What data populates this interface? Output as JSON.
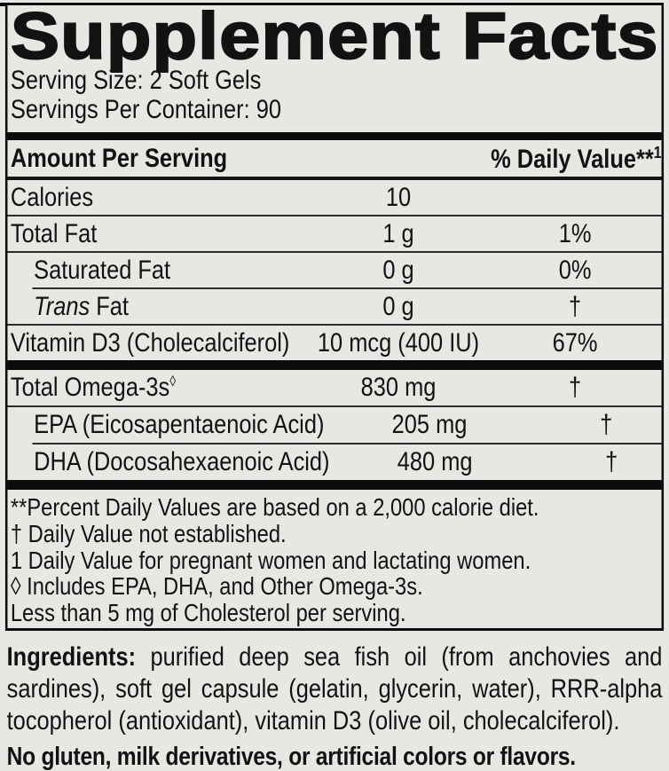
{
  "colors": {
    "background": "#e8e7e4",
    "text": "#121212",
    "thick_bar": "#0b0b0b",
    "thin_rule": "#2b2b2b"
  },
  "panel": {
    "title": "Supplement Facts",
    "serving_size": "Serving Size: 2 Soft Gels",
    "servings_per_container": "Servings Per Container: 90",
    "header": {
      "amount_label": "Amount Per Serving",
      "dv_label": "% Daily Value**",
      "dv_sup": "1"
    },
    "rows": [
      {
        "name": "Calories",
        "amount": "10",
        "dv": ""
      },
      {
        "name": "Total Fat",
        "amount": "1 g",
        "dv": "1%"
      },
      {
        "name": "Saturated Fat",
        "amount": "0 g",
        "dv": "0%"
      },
      {
        "name_italic": "Trans",
        "name": " Fat",
        "amount": "0 g",
        "dv": "†"
      },
      {
        "name": "Vitamin D3 (Cholecalciferol)",
        "amount": "10 mcg (400 IU)",
        "dv": "67%"
      }
    ],
    "omega_rows": [
      {
        "name": "Total Omega-3s",
        "name_sup": "◊",
        "amount": "830 mg",
        "dv": "†"
      },
      {
        "name": "EPA (Eicosapentaenoic Acid)",
        "amount": "205 mg",
        "dv": "†"
      },
      {
        "name": "DHA (Docosahexaenoic Acid)",
        "amount": "480 mg",
        "dv": "†"
      }
    ],
    "footnotes": [
      "**Percent Daily Values are based on a 2,000 calorie diet.",
      "† Daily Value not established.",
      "1 Daily Value for pregnant women and lactating women.",
      "◊ Includes EPA, DHA, and Other Omega-3s.",
      "Less than 5 mg of Cholesterol per serving."
    ]
  },
  "ingredients": {
    "label": "Ingredients:",
    "text": " purified deep sea fish oil (from anchovies and sardines), soft gel capsule (gelatin, glycerin, water), RRR-alpha tocopherol (antioxidant), vitamin D3 (olive oil, cholecalciferol)."
  },
  "allergen_statement": "No gluten, milk derivatives, or artificial colors or flavors."
}
